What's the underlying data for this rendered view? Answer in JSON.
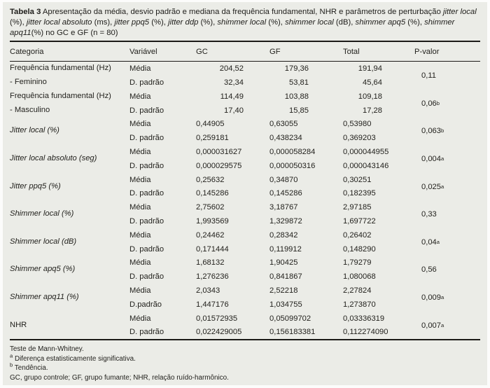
{
  "caption": {
    "segments": [
      "Tabela 3",
      " Apresentação da média, desvio padrão e mediana da frequência fundamental, NHR e parâmetros de perturbação ",
      "jitter local",
      " (%), ",
      "jitter local absoluto",
      " (ms), ",
      "jitter ppq5",
      " (%), ",
      "jitter ddp",
      " (%), ",
      "shimmer local",
      " (%), ",
      "shimmer local",
      " (dB), ",
      "shimmer apq5",
      " (%), ",
      "shimmer apq11",
      "(%) no GC e GF (n = 80)"
    ]
  },
  "header": {
    "categoria": "Categoria",
    "variavel": "Variável",
    "gc": "GC",
    "gf": "GF",
    "total": "Total",
    "p": "P-valor"
  },
  "rows": [
    {
      "cat1": "Frequência fundamental (Hz)",
      "cat2": "- Feminino",
      "v1": "Média",
      "v2": "D. padrão",
      "m_gc": "204,52",
      "m_gf": "179,36",
      "m_tot": "191,94",
      "s_gc": "32,34",
      "s_gf": "53,81",
      "s_tot": "45,64",
      "p": "0,11",
      "p_sup": ""
    },
    {
      "cat1": "Frequência fundamental (Hz)",
      "cat2": "- Masculino",
      "v1": "Média",
      "v2": "D. padrão",
      "m_gc": "114,49",
      "m_gf": "103,88",
      "m_tot": "109,18",
      "s_gc": "17,40",
      "s_gf": "15,85",
      "s_tot": "17,28",
      "p": "0,06",
      "p_sup": "b"
    },
    {
      "cat1": "Jitter local (%)",
      "cat2": "",
      "v1": "Média",
      "v2": "D. padrão",
      "m_gc": "0,44905",
      "m_gf": "0,63055",
      "m_tot": "0,53980",
      "s_gc": "0,259181",
      "s_gf": "0,438234",
      "s_tot": "0,369203",
      "p": "0,063",
      "p_sup": "b"
    },
    {
      "cat1": "Jitter local absoluto (seg)",
      "cat2": "",
      "v1": "Média",
      "v2": "D. padrão",
      "m_gc": "0,000031627",
      "m_gf": "0,000058284",
      "m_tot": "0,000044955",
      "s_gc": "0,000029575",
      "s_gf": "0,000050316",
      "s_tot": "0,000043146",
      "p": "0,004",
      "p_sup": "a"
    },
    {
      "cat1": "Jitter ppq5 (%)",
      "cat2": "",
      "v1": "Média",
      "v2": "D. padrão",
      "m_gc": "0,25632",
      "m_gf": "0,34870",
      "m_tot": "0,30251",
      "s_gc": "0,145286",
      "s_gf": "0,145286",
      "s_tot": "0,182395",
      "p": "0,025",
      "p_sup": "a"
    },
    {
      "cat1": "Shimmer local (%)",
      "cat2": "",
      "v1": "Média",
      "v2": "D. padrão",
      "m_gc": "2,75602",
      "m_gf": "3,18767",
      "m_tot": "2,97185",
      "s_gc": "1,993569",
      "s_gf": "1,329872",
      "s_tot": "1,697722",
      "p": "0,33",
      "p_sup": ""
    },
    {
      "cat1": "Shimmer local (dB)",
      "cat2": "",
      "v1": "Média",
      "v2": "D. padrão",
      "m_gc": "0,24462",
      "m_gf": "0,28342",
      "m_tot": "0,26402",
      "s_gc": "0,171444",
      "s_gf": "0,119912",
      "s_tot": "0,148290",
      "p": "0,04",
      "p_sup": "a"
    },
    {
      "cat1": "Shimmer apq5 (%)",
      "cat2": "",
      "v1": "Média",
      "v2": "D. padrão",
      "m_gc": "1,68132",
      "m_gf": "1,90425",
      "m_tot": "1,79279",
      "s_gc": "1,276236",
      "s_gf": "0,841867",
      "s_tot": "1,080068",
      "p": "0,56",
      "p_sup": ""
    },
    {
      "cat1": "Shimmer apq11 (%)",
      "cat2": "",
      "v1": "Média",
      "v2": "D.padrão",
      "m_gc": "2,0343",
      "m_gf": "2,52218",
      "m_tot": "2,27824",
      "s_gc": "1,447176",
      "s_gf": "1,034755",
      "s_tot": "1,273870",
      "p": "0,009",
      "p_sup": "a"
    },
    {
      "cat1": "NHR",
      "cat2": "",
      "v1": "Média",
      "v2": "D. padrão",
      "m_gc": "0,01572935",
      "m_gf": "0,05099702",
      "m_tot": "0,03336319",
      "s_gc": "0,022429005",
      "s_gf": "0,156183381",
      "s_tot": "0,112274090",
      "p": "0,007",
      "p_sup": "a"
    }
  ],
  "footnotes": {
    "line1": "Teste de Mann-Whitney.",
    "sup_a": "a",
    "line2": " Diferença estatisticamente significativa.",
    "sup_b": "b",
    "line3": " Tendência.",
    "line4": "GC, grupo controle; GF, grupo fumante; NHR, relação ruído-harmônico."
  }
}
